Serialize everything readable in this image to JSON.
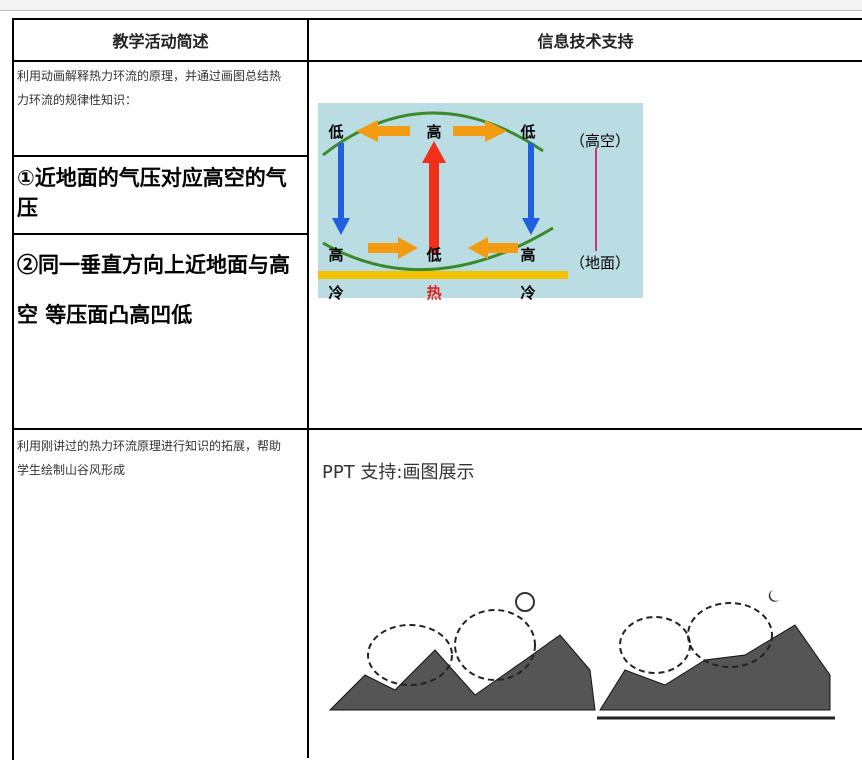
{
  "table": {
    "header": [
      "教学活动简述",
      "信息技术支持"
    ],
    "rows": [
      {
        "activity": [
          "利用动画解释热力环流的原理，并通过画图总结热力环流的规律性知识：",
          "①近地面的气压对应高空的气压",
          "②同一垂直方向上近地面与高空 等压面凸高凹低"
        ],
        "diagram": {
          "top": [
            "低",
            "高",
            "低"
          ],
          "bottom": [
            "高",
            "低",
            "高"
          ],
          "ground": [
            "冷",
            "热",
            "冷"
          ],
          "upper": "（高空）",
          "lower": "（地面）"
        }
      },
      {
        "activity": [
          "利用刚讲过的热力环流原理进行知识的拓展，帮助学生绘制山谷风形成"
        ],
        "support": "PPT 支持:画图展示"
      }
    ]
  }
}
